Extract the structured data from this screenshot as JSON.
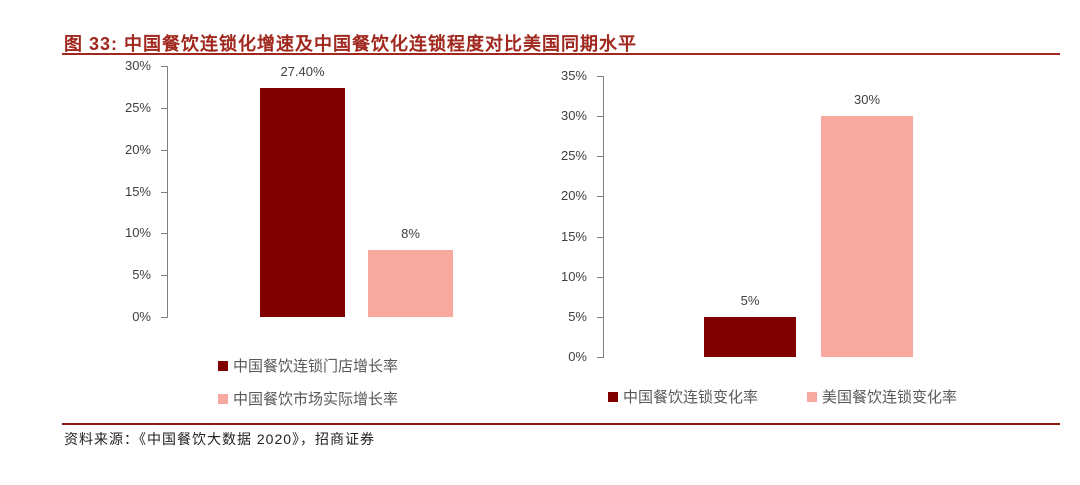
{
  "figure": {
    "title": "图 33:  中国餐饮连锁化增速及中国餐饮化连锁程度对比美国同期水平",
    "source": "资料来源：《中国餐饮大数据 2020》，招商证券"
  },
  "colors": {
    "dark_red": "#800000",
    "salmon": "#f7a9a0",
    "title_red": "#a0281e"
  },
  "chart_data": [
    {
      "type": "bar",
      "title": "",
      "xlabel": "",
      "ylabel": "",
      "ylim": [
        0,
        30
      ],
      "yticks": [
        "0%",
        "5%",
        "10%",
        "15%",
        "20%",
        "25%",
        "30%"
      ],
      "grid": false,
      "legend_position": "bottom",
      "series": [
        {
          "name": "中国餐饮连锁门店增长率",
          "values": [
            27.4
          ],
          "label": "27.40%",
          "color": "#800000"
        },
        {
          "name": "中国餐饮市场实际增长率",
          "values": [
            8
          ],
          "label": "8%",
          "color": "#f7a9a0"
        }
      ]
    },
    {
      "type": "bar",
      "title": "",
      "xlabel": "",
      "ylabel": "",
      "ylim": [
        0,
        35
      ],
      "yticks": [
        "0%",
        "5%",
        "10%",
        "15%",
        "20%",
        "25%",
        "30%",
        "35%"
      ],
      "grid": false,
      "legend_position": "bottom",
      "series": [
        {
          "name": "中国餐饮连锁变化率",
          "values": [
            5
          ],
          "label": "5%",
          "color": "#800000"
        },
        {
          "name": "美国餐饮连锁变化率",
          "values": [
            30
          ],
          "label": "30%",
          "color": "#f7a9a0"
        }
      ]
    }
  ]
}
